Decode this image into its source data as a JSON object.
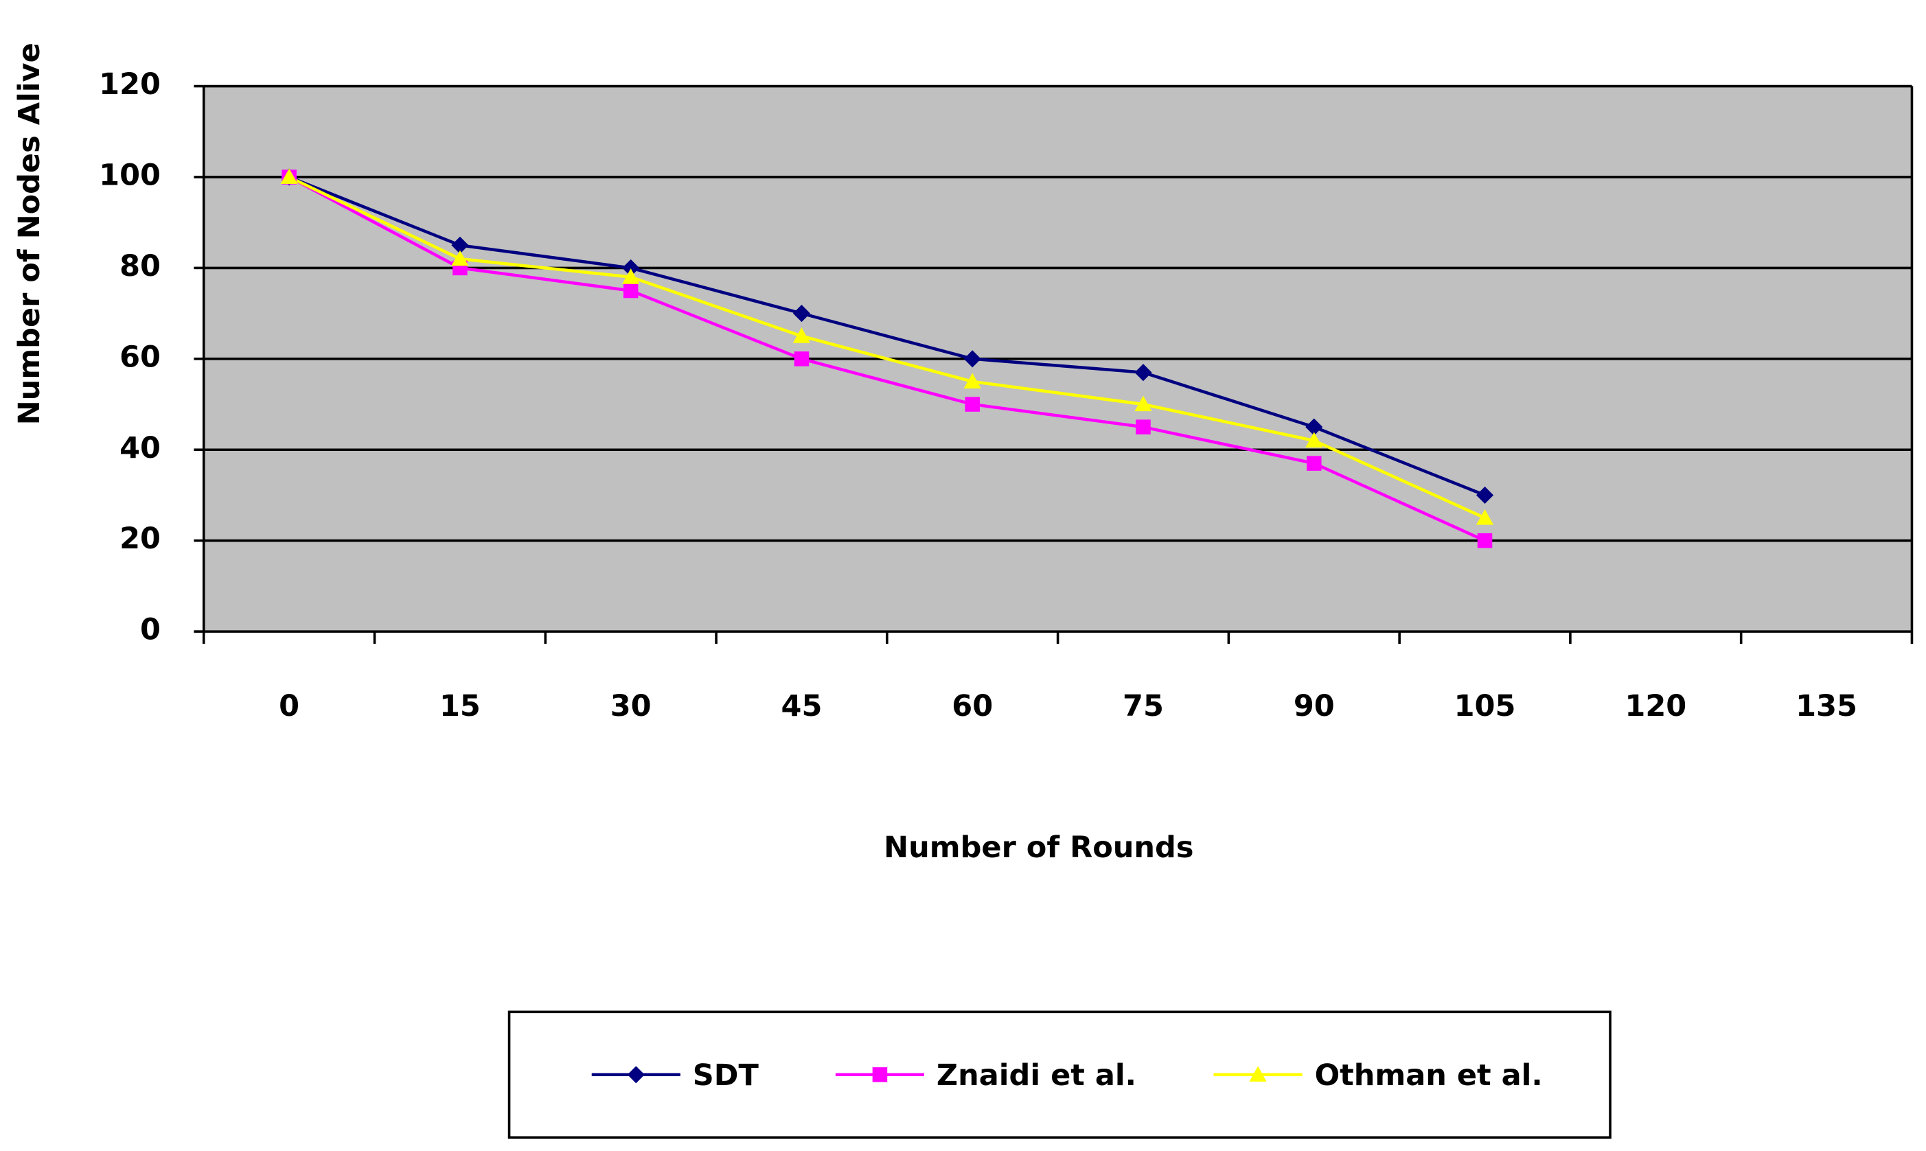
{
  "chart_data": {
    "type": "line",
    "x_label": "Number of Rounds",
    "y_label": "Number of Nodes Alive",
    "categories": [
      "0",
      "15",
      "30",
      "45",
      "60",
      "75",
      "90",
      "105",
      "120",
      "135"
    ],
    "series": [
      {
        "name": "SDT",
        "color": "#000080",
        "marker": "diamond",
        "values": [
          100,
          85,
          80,
          70,
          60,
          57,
          45,
          30,
          null,
          null
        ]
      },
      {
        "name": "Znaidi et al.",
        "color": "#ff00ff",
        "marker": "square",
        "values": [
          100,
          80,
          75,
          60,
          50,
          45,
          37,
          20,
          null,
          null
        ]
      },
      {
        "name": "Othman et al.",
        "color": "#ffff00",
        "marker": "triangle",
        "values": [
          100,
          82,
          78,
          65,
          55,
          50,
          42,
          25,
          null,
          null
        ]
      }
    ],
    "ylim": [
      0,
      120
    ],
    "yticks": [
      0,
      20,
      40,
      60,
      80,
      100,
      120
    ],
    "grid": true,
    "plot_background": "#c0c0c0",
    "legend": "bottom"
  }
}
